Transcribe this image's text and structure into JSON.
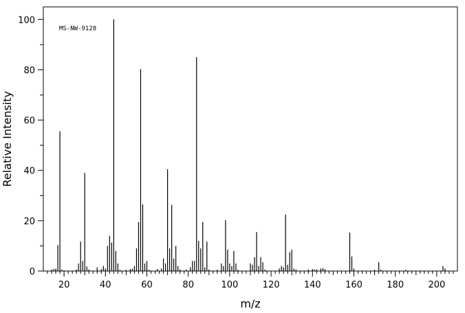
{
  "chart_data": {
    "type": "bar",
    "title": "",
    "annotation": "MS-NW-9128",
    "xlabel": "m/z",
    "ylabel": "Relative Intensity",
    "xlim": [
      10,
      210
    ],
    "ylim": [
      0,
      105
    ],
    "xticks": [
      20,
      40,
      60,
      80,
      100,
      120,
      140,
      160,
      180,
      200
    ],
    "yticks": [
      0,
      20,
      40,
      60,
      80,
      100
    ],
    "grid": false,
    "peaks": [
      {
        "mz": 14,
        "intensity": 0.5
      },
      {
        "mz": 15,
        "intensity": 0.8
      },
      {
        "mz": 16,
        "intensity": 1.0
      },
      {
        "mz": 17,
        "intensity": 10.3
      },
      {
        "mz": 18,
        "intensity": 55.5
      },
      {
        "mz": 19,
        "intensity": 0.6
      },
      {
        "mz": 26,
        "intensity": 0.6
      },
      {
        "mz": 27,
        "intensity": 3.0
      },
      {
        "mz": 28,
        "intensity": 11.7
      },
      {
        "mz": 29,
        "intensity": 4.0
      },
      {
        "mz": 30,
        "intensity": 39.0
      },
      {
        "mz": 31,
        "intensity": 1.8
      },
      {
        "mz": 32,
        "intensity": 0.6
      },
      {
        "mz": 36,
        "intensity": 1.5
      },
      {
        "mz": 38,
        "intensity": 0.8
      },
      {
        "mz": 39,
        "intensity": 2.0
      },
      {
        "mz": 40,
        "intensity": 1.0
      },
      {
        "mz": 41,
        "intensity": 10.0
      },
      {
        "mz": 42,
        "intensity": 14.0
      },
      {
        "mz": 43,
        "intensity": 11.3
      },
      {
        "mz": 44,
        "intensity": 100.0
      },
      {
        "mz": 45,
        "intensity": 8.0
      },
      {
        "mz": 46,
        "intensity": 3.0
      },
      {
        "mz": 47,
        "intensity": 0.5
      },
      {
        "mz": 50,
        "intensity": 0.5
      },
      {
        "mz": 52,
        "intensity": 0.8
      },
      {
        "mz": 53,
        "intensity": 1.0
      },
      {
        "mz": 54,
        "intensity": 2.0
      },
      {
        "mz": 55,
        "intensity": 9.0
      },
      {
        "mz": 56,
        "intensity": 19.5
      },
      {
        "mz": 57,
        "intensity": 80.3
      },
      {
        "mz": 58,
        "intensity": 26.5
      },
      {
        "mz": 59,
        "intensity": 3.0
      },
      {
        "mz": 60,
        "intensity": 4.0
      },
      {
        "mz": 61,
        "intensity": 0.5
      },
      {
        "mz": 65,
        "intensity": 0.8
      },
      {
        "mz": 67,
        "intensity": 1.0
      },
      {
        "mz": 68,
        "intensity": 5.0
      },
      {
        "mz": 69,
        "intensity": 3.0
      },
      {
        "mz": 70,
        "intensity": 40.5
      },
      {
        "mz": 71,
        "intensity": 9.0
      },
      {
        "mz": 72,
        "intensity": 26.3
      },
      {
        "mz": 73,
        "intensity": 5.0
      },
      {
        "mz": 74,
        "intensity": 10.0
      },
      {
        "mz": 75,
        "intensity": 2.0
      },
      {
        "mz": 76,
        "intensity": 0.6
      },
      {
        "mz": 79,
        "intensity": 0.6
      },
      {
        "mz": 81,
        "intensity": 1.5
      },
      {
        "mz": 82,
        "intensity": 4.0
      },
      {
        "mz": 83,
        "intensity": 4.0
      },
      {
        "mz": 84,
        "intensity": 85.0
      },
      {
        "mz": 85,
        "intensity": 12.0
      },
      {
        "mz": 86,
        "intensity": 9.0
      },
      {
        "mz": 87,
        "intensity": 19.5
      },
      {
        "mz": 88,
        "intensity": 1.5
      },
      {
        "mz": 89,
        "intensity": 11.7
      },
      {
        "mz": 90,
        "intensity": 0.6
      },
      {
        "mz": 94,
        "intensity": 0.5
      },
      {
        "mz": 96,
        "intensity": 3.0
      },
      {
        "mz": 97,
        "intensity": 2.0
      },
      {
        "mz": 98,
        "intensity": 20.2
      },
      {
        "mz": 99,
        "intensity": 8.5
      },
      {
        "mz": 100,
        "intensity": 3.0
      },
      {
        "mz": 101,
        "intensity": 2.0
      },
      {
        "mz": 102,
        "intensity": 8.0
      },
      {
        "mz": 103,
        "intensity": 3.0
      },
      {
        "mz": 104,
        "intensity": 0.5
      },
      {
        "mz": 110,
        "intensity": 3.0
      },
      {
        "mz": 111,
        "intensity": 2.5
      },
      {
        "mz": 112,
        "intensity": 5.5
      },
      {
        "mz": 113,
        "intensity": 15.5
      },
      {
        "mz": 114,
        "intensity": 2.0
      },
      {
        "mz": 115,
        "intensity": 5.5
      },
      {
        "mz": 116,
        "intensity": 3.5
      },
      {
        "mz": 117,
        "intensity": 0.6
      },
      {
        "mz": 124,
        "intensity": 1.0
      },
      {
        "mz": 125,
        "intensity": 2.0
      },
      {
        "mz": 126,
        "intensity": 1.5
      },
      {
        "mz": 127,
        "intensity": 22.5
      },
      {
        "mz": 128,
        "intensity": 2.5
      },
      {
        "mz": 129,
        "intensity": 7.5
      },
      {
        "mz": 130,
        "intensity": 8.5
      },
      {
        "mz": 131,
        "intensity": 1.0
      },
      {
        "mz": 132,
        "intensity": 0.6
      },
      {
        "mz": 138,
        "intensity": 0.6
      },
      {
        "mz": 140,
        "intensity": 0.8
      },
      {
        "mz": 141,
        "intensity": 0.6
      },
      {
        "mz": 142,
        "intensity": 0.6
      },
      {
        "mz": 144,
        "intensity": 1.0
      },
      {
        "mz": 145,
        "intensity": 1.2
      },
      {
        "mz": 146,
        "intensity": 0.8
      },
      {
        "mz": 158,
        "intensity": 15.3
      },
      {
        "mz": 159,
        "intensity": 5.8
      },
      {
        "mz": 160,
        "intensity": 1.0
      },
      {
        "mz": 170,
        "intensity": 0.5
      },
      {
        "mz": 172,
        "intensity": 3.5
      },
      {
        "mz": 173,
        "intensity": 0.6
      },
      {
        "mz": 185,
        "intensity": 0.5
      },
      {
        "mz": 203,
        "intensity": 2.0
      },
      {
        "mz": 204,
        "intensity": 1.0
      }
    ]
  }
}
